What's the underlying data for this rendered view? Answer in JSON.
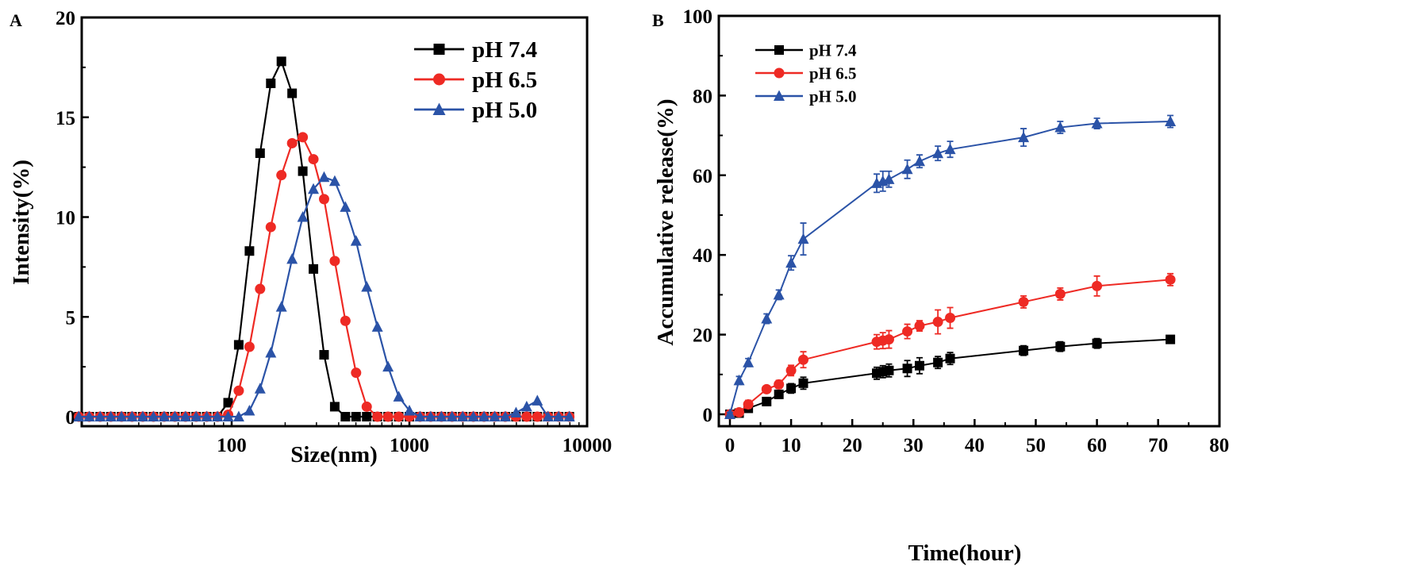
{
  "chart_data": [
    {
      "panel_label": "A",
      "type": "line",
      "xlabel": "Size(nm)",
      "ylabel": "Intensity(%)",
      "x_scale": "log",
      "xlim": [
        14,
        10000
      ],
      "ylim": [
        0,
        20
      ],
      "x_ticks": [
        "100",
        "1000",
        "10000"
      ],
      "x_tick_values": [
        100,
        1000,
        10000
      ],
      "y_ticks": [
        "0",
        "5",
        "10",
        "15",
        "20"
      ],
      "y_tick_values": [
        0,
        5,
        10,
        15,
        20
      ],
      "legend_position": "top-right",
      "grid": false,
      "x": [
        13.8,
        15.8,
        18.2,
        20.9,
        24.0,
        27.5,
        31.6,
        36.3,
        41.7,
        47.9,
        55.0,
        63.1,
        72.4,
        83.2,
        95.5,
        109.6,
        125.9,
        144.5,
        166.0,
        190.5,
        218.8,
        251.2,
        288.4,
        331.1,
        380.2,
        436.5,
        501.2,
        575.4,
        660.7,
        758.6,
        871.0,
        1000,
        1148,
        1318,
        1514,
        1738,
        1995,
        2291,
        2630,
        3020,
        3467,
        3981,
        4571,
        5248,
        6026,
        6918,
        7943
      ],
      "series": [
        {
          "name": "pH 7.4",
          "color": "#000000",
          "marker": "square",
          "values": [
            0,
            0,
            0,
            0,
            0,
            0,
            0,
            0,
            0,
            0,
            0,
            0,
            0,
            0,
            0.7,
            3.6,
            8.3,
            13.2,
            16.7,
            17.8,
            16.2,
            12.3,
            7.4,
            3.1,
            0.5,
            0,
            0,
            0,
            0,
            0,
            0,
            0,
            0,
            0,
            0,
            0,
            0,
            0,
            0,
            0,
            0,
            0,
            0,
            0,
            0,
            0,
            0
          ]
        },
        {
          "name": "pH 6.5",
          "color": "#ee2a24",
          "marker": "circle",
          "values": [
            0,
            0,
            0,
            0,
            0,
            0,
            0,
            0,
            0,
            0,
            0,
            0,
            0,
            0,
            0.1,
            1.3,
            3.5,
            6.4,
            9.5,
            12.1,
            13.7,
            14.0,
            12.9,
            10.9,
            7.8,
            4.8,
            2.2,
            0.5,
            0,
            0,
            0,
            0,
            0,
            0,
            0,
            0,
            0,
            0,
            0,
            0,
            0,
            0,
            0,
            0,
            0,
            0,
            0
          ]
        },
        {
          "name": "pH 5.0",
          "color": "#2b53a7",
          "marker": "triangle",
          "values": [
            0,
            0,
            0,
            0,
            0,
            0,
            0,
            0,
            0,
            0,
            0,
            0,
            0,
            0,
            0,
            0,
            0.3,
            1.4,
            3.2,
            5.5,
            7.9,
            10.0,
            11.4,
            12.0,
            11.8,
            10.5,
            8.8,
            6.5,
            4.5,
            2.5,
            1.0,
            0.3,
            0,
            0,
            0,
            0,
            0,
            0,
            0,
            0,
            0,
            0.2,
            0.5,
            0.8,
            0,
            0,
            0
          ]
        }
      ]
    },
    {
      "panel_label": "B",
      "type": "line",
      "xlabel": "Time(hour)",
      "ylabel": "Accumulative release(%)",
      "xlim": [
        -2,
        80
      ],
      "ylim": [
        0,
        100
      ],
      "x_ticks": [
        "0",
        "10",
        "20",
        "30",
        "40",
        "50",
        "60",
        "70",
        "80"
      ],
      "x_tick_values": [
        0,
        10,
        20,
        30,
        40,
        50,
        60,
        70,
        80
      ],
      "y_ticks": [
        "0",
        "20",
        "40",
        "60",
        "80",
        "100"
      ],
      "y_tick_values": [
        0,
        20,
        40,
        60,
        80,
        100
      ],
      "legend_position": "top-left",
      "grid": false,
      "x": [
        0,
        1.5,
        3,
        6,
        8,
        10,
        12,
        24,
        25,
        26,
        29,
        31,
        34,
        36,
        48,
        54,
        60,
        72
      ],
      "series": [
        {
          "name": "pH 7.4",
          "color": "#000000",
          "marker": "square",
          "values": [
            0,
            0.3,
            1.5,
            3.2,
            5.0,
            6.5,
            7.8,
            10.3,
            10.7,
            11.0,
            11.5,
            12.2,
            13.0,
            14.0,
            16.0,
            17.0,
            17.8,
            18.8
          ],
          "errors": [
            0.3,
            0.5,
            0.6,
            0.8,
            1.0,
            1.2,
            1.5,
            1.5,
            1.5,
            1.6,
            2.0,
            2.0,
            1.5,
            1.5,
            1.2,
            1.2,
            1.2,
            0.8
          ]
        },
        {
          "name": "pH 6.5",
          "color": "#ee2a24",
          "marker": "circle",
          "values": [
            0,
            0.5,
            2.5,
            6.3,
            7.5,
            11.0,
            13.7,
            18.2,
            18.5,
            18.8,
            20.8,
            22.2,
            23.2,
            24.2,
            28.2,
            30.2,
            32.2,
            33.8
          ],
          "errors": [
            0.3,
            0.5,
            1.0,
            0.8,
            1.0,
            1.3,
            2.0,
            1.8,
            2.0,
            2.2,
            1.8,
            1.3,
            3.0,
            2.6,
            1.5,
            1.5,
            2.5,
            1.5
          ]
        },
        {
          "name": "pH 5.0",
          "color": "#2b53a7",
          "marker": "triangle",
          "values": [
            0,
            8.5,
            13.0,
            24.0,
            30.0,
            38.0,
            44.0,
            58.0,
            58.5,
            59.0,
            61.5,
            63.5,
            65.5,
            66.5,
            69.5,
            72.0,
            73.0,
            73.5
          ],
          "errors": [
            0.5,
            1.0,
            1.0,
            1.2,
            1.2,
            1.8,
            4.0,
            2.3,
            2.5,
            2.0,
            2.3,
            1.6,
            1.8,
            2.0,
            2.2,
            1.5,
            1.3,
            1.5
          ]
        }
      ]
    }
  ]
}
